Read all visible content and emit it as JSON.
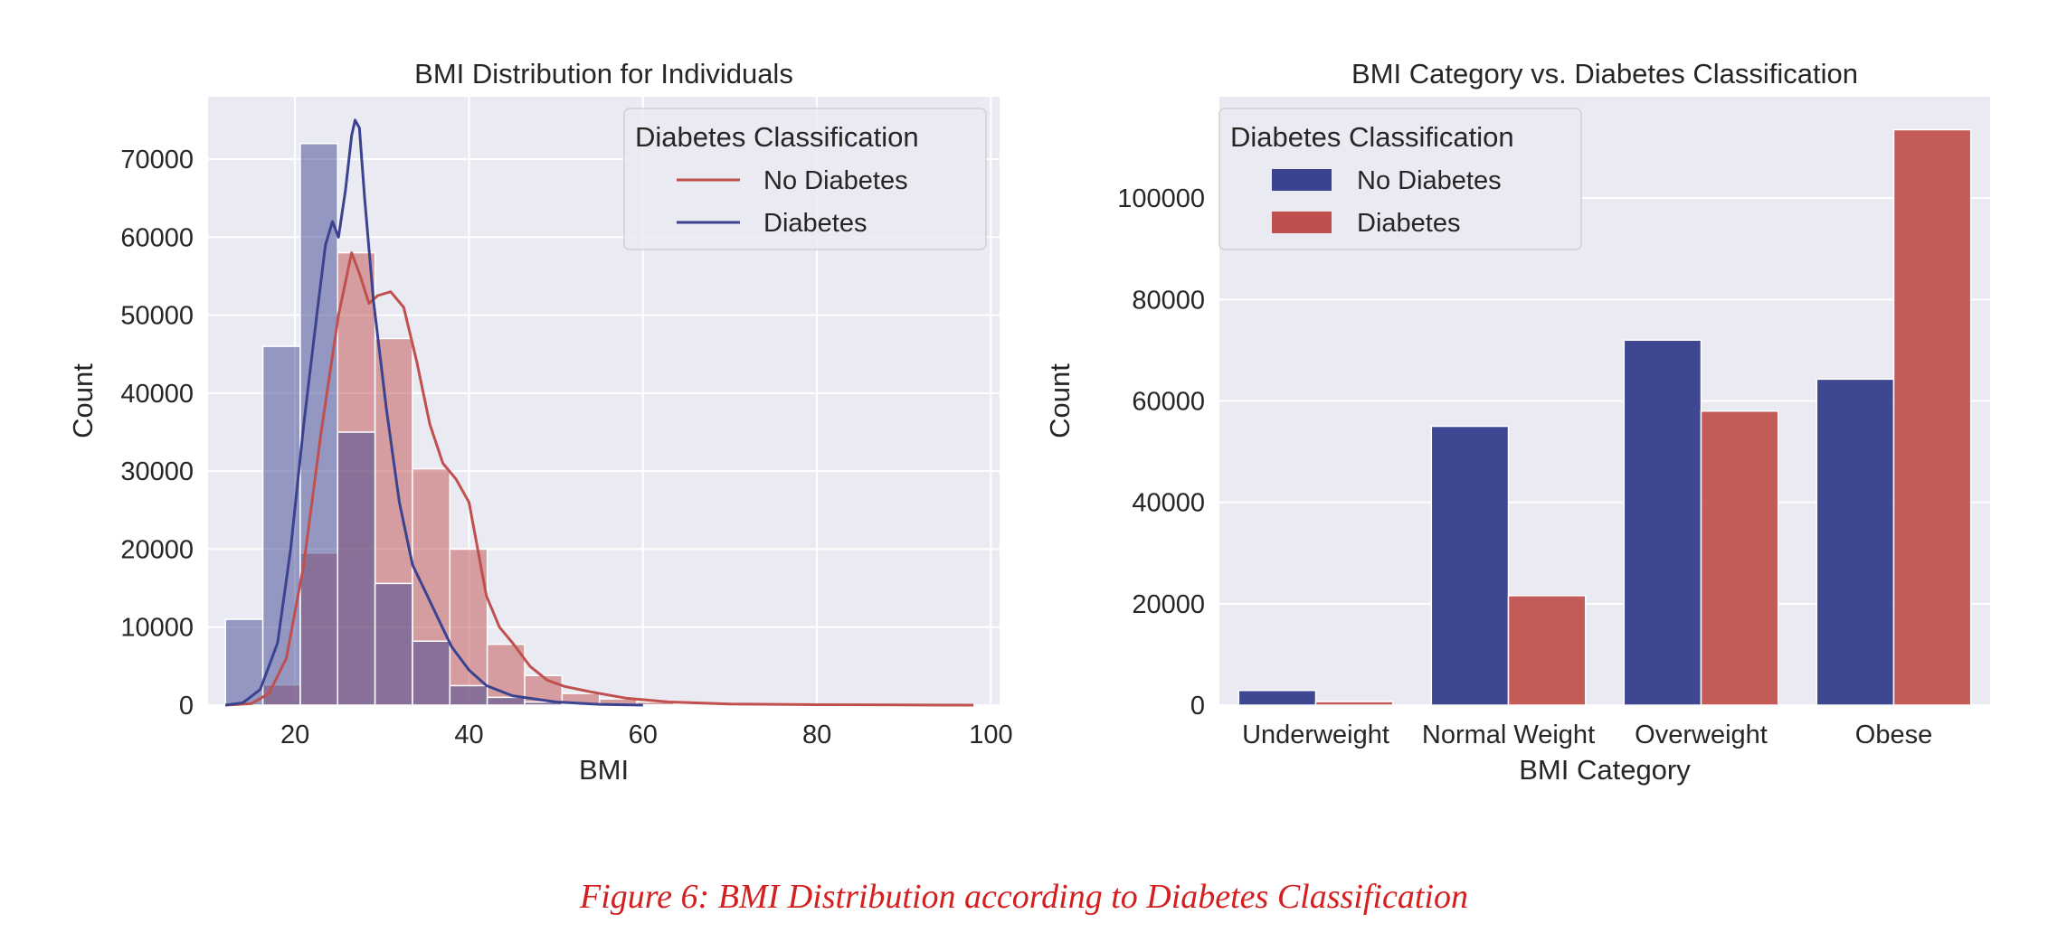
{
  "caption": "Figure 6: BMI Distribution according to Diabetes Classification",
  "colors": {
    "no_diabetes": "#c0504d",
    "diabetes": "#3b4390",
    "panel_bg": "#eaeaf2",
    "grid": "#ffffff"
  },
  "chart_data": [
    {
      "type": "histogram",
      "title": "BMI Distribution for Individuals",
      "xlabel": "BMI",
      "ylabel": "Count",
      "xlim": [
        10,
        101
      ],
      "ylim": [
        0,
        78000
      ],
      "xticks": [
        20,
        40,
        60,
        80,
        100
      ],
      "yticks": [
        0,
        10000,
        20000,
        30000,
        40000,
        50000,
        60000,
        70000
      ],
      "grid": true,
      "legend": {
        "title": "Diabetes Classification",
        "placement": "top-right",
        "entries": [
          "No Diabetes",
          "Diabetes"
        ]
      },
      "bin_edges": [
        12,
        16.3,
        20.6,
        24.9,
        29.2,
        33.5,
        37.8,
        42.1,
        46.4,
        50.7,
        55,
        59.3,
        63.6,
        67.9,
        72.2,
        76.5,
        80.8,
        85.1,
        89.4,
        93.7,
        98
      ],
      "series": [
        {
          "name": "No Diabetes",
          "counts": [
            0,
            2600,
            19500,
            58000,
            47000,
            30300,
            20000,
            7800,
            3800,
            1500,
            800,
            400,
            200,
            120,
            60,
            40,
            30,
            20,
            10,
            0
          ],
          "kde": [
            [
              12,
              0
            ],
            [
              15,
              200
            ],
            [
              17,
              1500
            ],
            [
              19,
              6000
            ],
            [
              21,
              18000
            ],
            [
              23,
              35000
            ],
            [
              25,
              50000
            ],
            [
              26.5,
              58000
            ],
            [
              27.5,
              55000
            ],
            [
              28.5,
              51500
            ],
            [
              29.5,
              52500
            ],
            [
              31,
              53000
            ],
            [
              32.5,
              51000
            ],
            [
              34,
              44000
            ],
            [
              35.5,
              36000
            ],
            [
              37,
              31000
            ],
            [
              38.5,
              29000
            ],
            [
              40,
              26000
            ],
            [
              41,
              20000
            ],
            [
              42,
              14000
            ],
            [
              43.5,
              10000
            ],
            [
              45,
              8000
            ],
            [
              47,
              5000
            ],
            [
              49,
              3200
            ],
            [
              51,
              2400
            ],
            [
              54,
              1700
            ],
            [
              58,
              900
            ],
            [
              63,
              400
            ],
            [
              70,
              150
            ],
            [
              80,
              60
            ],
            [
              90,
              20
            ],
            [
              98,
              0
            ]
          ]
        },
        {
          "name": "Diabetes",
          "counts": [
            11000,
            46000,
            72000,
            35000,
            15600,
            8200,
            2500,
            1000,
            400,
            150,
            60,
            30,
            10,
            5,
            0,
            0,
            0,
            0,
            0,
            0
          ],
          "kde": [
            [
              12,
              0
            ],
            [
              14,
              300
            ],
            [
              16,
              2000
            ],
            [
              18,
              8000
            ],
            [
              19.5,
              20000
            ],
            [
              21,
              36000
            ],
            [
              22.5,
              50000
            ],
            [
              23.5,
              59000
            ],
            [
              24.3,
              62000
            ],
            [
              25,
              60000
            ],
            [
              25.8,
              66000
            ],
            [
              26.5,
              73000
            ],
            [
              26.9,
              75000
            ],
            [
              27.4,
              74000
            ],
            [
              28,
              65000
            ],
            [
              29,
              52000
            ],
            [
              30.5,
              38000
            ],
            [
              32,
              26000
            ],
            [
              33.5,
              18000
            ],
            [
              35,
              14500
            ],
            [
              36.5,
              11000
            ],
            [
              38,
              7500
            ],
            [
              40,
              4500
            ],
            [
              42,
              2500
            ],
            [
              45,
              1200
            ],
            [
              50,
              400
            ],
            [
              55,
              100
            ],
            [
              60,
              0
            ]
          ]
        }
      ]
    },
    {
      "type": "bar",
      "title": "BMI Category vs. Diabetes Classification",
      "xlabel": "BMI Category",
      "ylabel": "Count",
      "categories": [
        "Underweight",
        "Normal Weight",
        "Overweight",
        "Obese"
      ],
      "ylim": [
        0,
        120000
      ],
      "yticks": [
        0,
        20000,
        40000,
        60000,
        80000,
        100000
      ],
      "grid": true,
      "legend": {
        "title": "Diabetes Classification",
        "placement": "top-left",
        "entries": [
          "No Diabetes",
          "Diabetes"
        ]
      },
      "series": [
        {
          "name": "No Diabetes",
          "values": [
            2900,
            55000,
            72000,
            64300
          ]
        },
        {
          "name": "Diabetes",
          "values": [
            700,
            21600,
            58000,
            113500
          ]
        }
      ]
    }
  ]
}
